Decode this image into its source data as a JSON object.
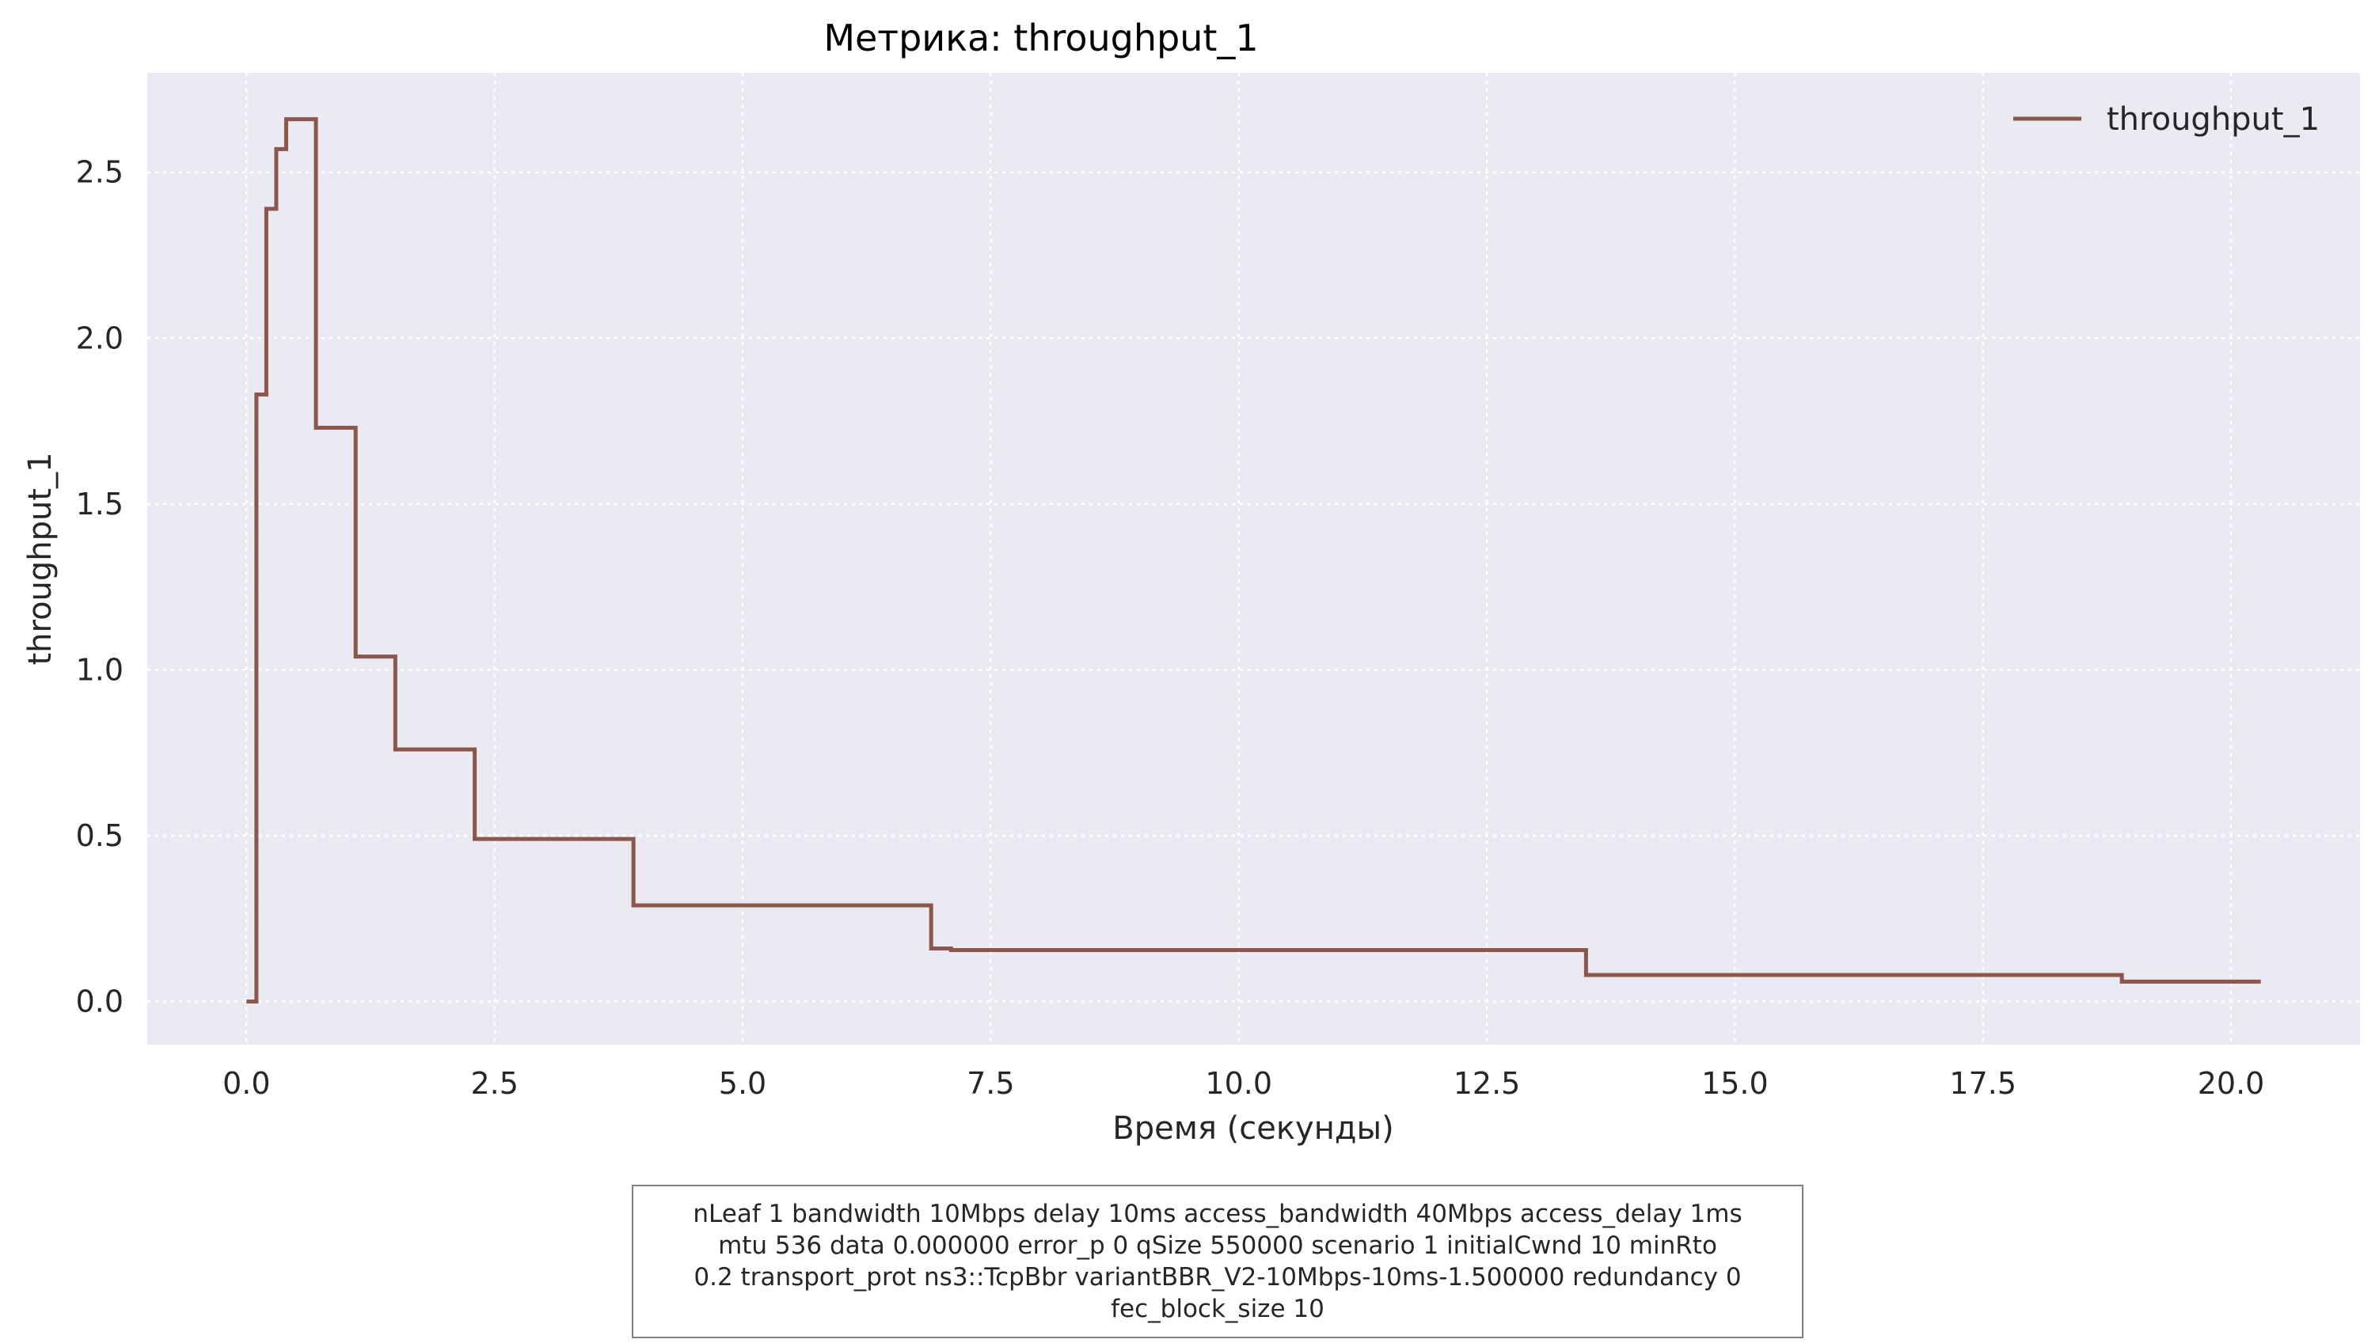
{
  "chart_data": {
    "type": "line",
    "step": "post",
    "title": "Метрика: throughput_1",
    "xlabel": "Время (секунды)",
    "ylabel": "throughput_1",
    "xlim": [
      -1.0,
      21.3
    ],
    "ylim": [
      -0.13,
      2.8
    ],
    "x_ticks": [
      0.0,
      2.5,
      5.0,
      7.5,
      10.0,
      12.5,
      15.0,
      17.5,
      20.0
    ],
    "x_tick_labels": [
      "0.0",
      "2.5",
      "5.0",
      "7.5",
      "10.0",
      "12.5",
      "15.0",
      "17.5",
      "20.0"
    ],
    "y_ticks": [
      0.0,
      0.5,
      1.0,
      1.5,
      2.0,
      2.5
    ],
    "y_tick_labels": [
      "0.0",
      "0.5",
      "1.0",
      "1.5",
      "2.0",
      "2.5"
    ],
    "grid": true,
    "legend_position": "top-right",
    "series": [
      {
        "name": "throughput_1",
        "color": "#8c564b",
        "x": [
          0.0,
          0.1,
          0.2,
          0.3,
          0.4,
          0.5,
          0.7,
          1.1,
          1.5,
          2.3,
          3.9,
          6.9,
          7.1,
          13.5,
          18.9,
          20.3
        ],
        "y": [
          0.0,
          1.83,
          2.39,
          2.57,
          2.66,
          2.66,
          1.73,
          1.04,
          0.76,
          0.49,
          0.29,
          0.16,
          0.155,
          0.08,
          0.06,
          0.06
        ]
      }
    ]
  },
  "note": "nLeaf 1 bandwidth 10Mbps delay  10ms access_bandwidth 40Mbps access_delay 1ms\nmtu 536 data  0.000000 error_p 0 qSize 550000 scenario 1 initialCwnd  10 minRto\n0.2 transport_prot ns3::TcpBbr variantBBR_V2-10Mbps-10ms-1.500000 redundancy 0\nfec_block_size 10"
}
